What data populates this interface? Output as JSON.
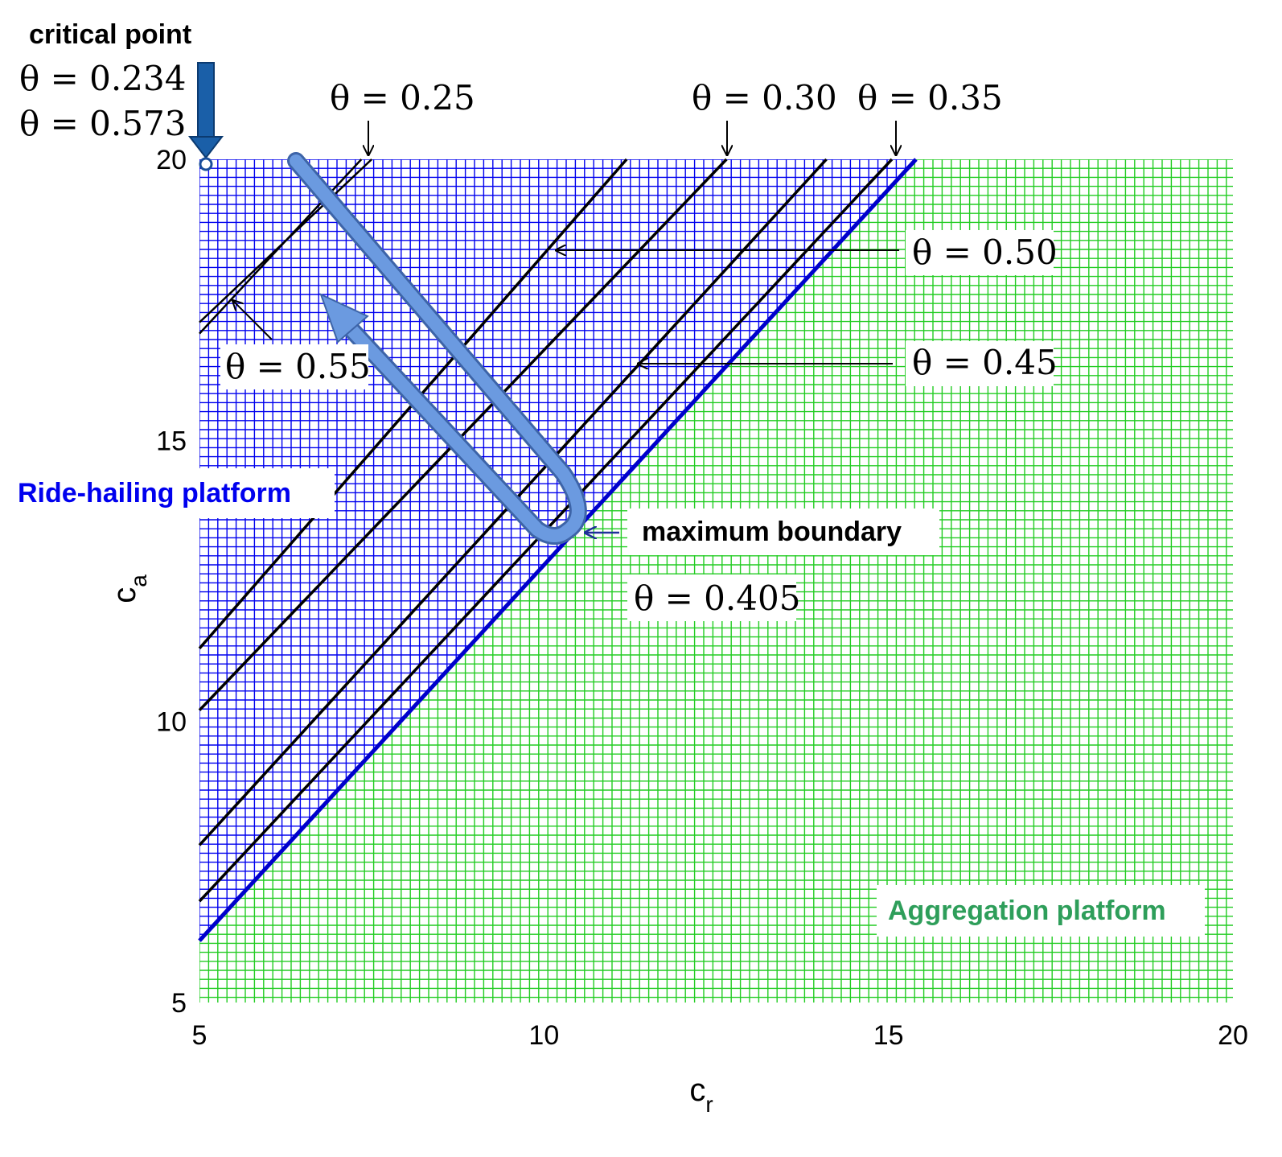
{
  "chart_data": {
    "type": "line",
    "xlabel": "c",
    "xlabel_sub": "r",
    "ylabel": "c",
    "ylabel_sub": "a",
    "xlim": [
      5,
      20
    ],
    "ylim": [
      5,
      20
    ],
    "xticks": [
      "5",
      "10",
      "15",
      "20"
    ],
    "yticks": [
      "5",
      "10",
      "15",
      "20"
    ],
    "grid": true,
    "regions": [
      {
        "label": "Ride-hailing platform",
        "color": "#0000ee",
        "side": "above boundary"
      },
      {
        "label": "Aggregation platform",
        "color": "#22cc22",
        "side": "below boundary"
      }
    ],
    "boundary": {
      "x": [
        5,
        15.4
      ],
      "y": [
        6.1,
        20
      ],
      "color": "#0000cc"
    },
    "series": [
      {
        "x": [
          5,
          7.35
        ],
        "y": [
          16.9,
          20
        ],
        "annotation": "θ = 0.55"
      },
      {
        "x": [
          5,
          7.5
        ],
        "y": [
          17.1,
          20
        ],
        "annotation": "θ = 0.25"
      },
      {
        "x": [
          5,
          11.2
        ],
        "y": [
          11.3,
          20
        ]
      },
      {
        "x": [
          5,
          12.65
        ],
        "y": [
          10.2,
          20
        ],
        "annotation": "θ = 0.30"
      },
      {
        "x": [
          5,
          14.1
        ],
        "y": [
          7.8,
          20
        ]
      },
      {
        "x": [
          5,
          15.05
        ],
        "y": [
          6.8,
          20
        ],
        "annotation": "θ = 0.35"
      }
    ],
    "annotations": [
      {
        "text": "critical point",
        "color": "#000000"
      },
      {
        "text": "θ = 0.234"
      },
      {
        "text": "θ = 0.573"
      },
      {
        "text": "θ = 0.25"
      },
      {
        "text": "θ = 0.30"
      },
      {
        "text": "θ = 0.35"
      },
      {
        "text": "θ = 0.50"
      },
      {
        "text": "θ = 0.45"
      },
      {
        "text": "θ = 0.55"
      },
      {
        "text": "maximum boundary"
      },
      {
        "text": "θ = 0.405"
      },
      {
        "text": "Ride-hailing platform",
        "color": "#0000ee"
      },
      {
        "text": "Aggregation platform",
        "color": "#2e9e5a"
      }
    ],
    "critical_point": {
      "x": 5,
      "y": 20
    }
  }
}
